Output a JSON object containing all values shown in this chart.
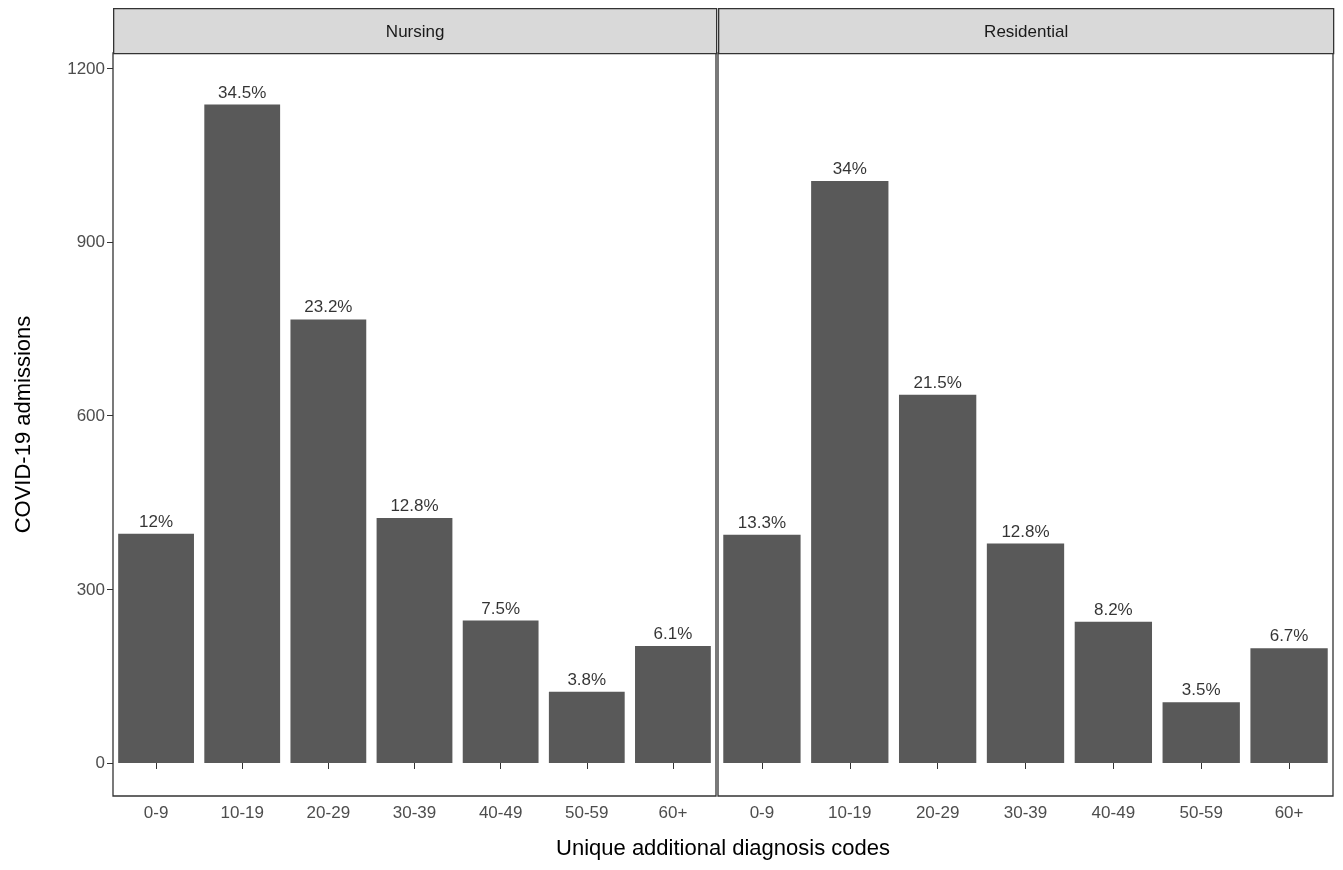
{
  "chart_data": [
    {
      "type": "bar",
      "title": "Nursing",
      "ylabel": "COVID-19 admissions",
      "xlabel": "Unique additional diagnosis codes",
      "categories": [
        "0-9",
        "10-19",
        "20-29",
        "30-39",
        "40-49",
        "50-59",
        "60+"
      ],
      "values": [
        396,
        1137,
        766,
        423,
        246,
        123,
        202
      ],
      "annotations": [
        {
          "text": "12%",
          "x": "0-9",
          "y": 396
        },
        {
          "text": "34.5%",
          "x": "10-19",
          "y": 1137
        },
        {
          "text": "23.2%",
          "x": "20-29",
          "y": 766
        },
        {
          "text": "12.8%",
          "x": "30-39",
          "y": 423
        },
        {
          "text": "7.5%",
          "x": "40-49",
          "y": 246
        },
        {
          "text": "3.8%",
          "x": "50-59",
          "y": 123
        },
        {
          "text": "6.1%",
          "x": "60+",
          "y": 202
        }
      ],
      "color": "#595959",
      "ylim": [
        -57,
        1226
      ],
      "yticks": [
        0,
        300,
        600,
        900,
        1200
      ]
    },
    {
      "type": "bar",
      "title": "Residential",
      "categories": [
        "0-9",
        "10-19",
        "20-29",
        "30-39",
        "40-49",
        "50-59",
        "60+"
      ],
      "values": [
        394,
        1005,
        636,
        379,
        244,
        105,
        198
      ],
      "annotations": [
        {
          "text": "13.3%",
          "x": "0-9",
          "y": 394
        },
        {
          "text": "34%",
          "x": "10-19",
          "y": 1005
        },
        {
          "text": "21.5%",
          "x": "20-29",
          "y": 636
        },
        {
          "text": "12.8%",
          "x": "30-39",
          "y": 379
        },
        {
          "text": "8.2%",
          "x": "40-49",
          "y": 244
        },
        {
          "text": "3.5%",
          "x": "50-59",
          "y": 105
        },
        {
          "text": "6.7%",
          "x": "60+",
          "y": 198
        }
      ],
      "color": "#595959",
      "ylim": [
        -57,
        1226
      ],
      "yticks": [
        0,
        300,
        600,
        900,
        1200
      ],
      "tick_labels": "x"
    }
  ]
}
